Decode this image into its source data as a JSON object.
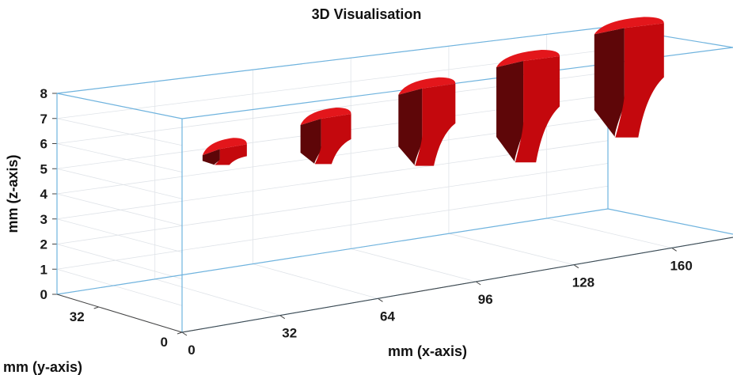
{
  "chart_data": {
    "type": "3d-volume",
    "title": "3D Visualisation",
    "xlabel": "mm (x-axis)",
    "ylabel": "mm (y-axis)",
    "zlabel": "mm (z-axis)",
    "x_ticks": [
      "0",
      "32",
      "64",
      "96",
      "128",
      "160"
    ],
    "y_ticks": [
      "0",
      "32"
    ],
    "z_ticks": [
      "0",
      "1",
      "2",
      "3",
      "4",
      "5",
      "6",
      "7",
      "8"
    ],
    "xlim": [
      0,
      180
    ],
    "ylim": [
      0,
      48
    ],
    "zlim": [
      0,
      8
    ],
    "grid": true,
    "surface_color": "#c4080d",
    "box_color": "#6fb3de",
    "objects": [
      {
        "x": 16,
        "z_min": 5.3,
        "z_max": 5.9
      },
      {
        "x": 48,
        "z_min": 4.7,
        "z_max": 6.4
      },
      {
        "x": 80,
        "z_min": 4.0,
        "z_max": 6.9
      },
      {
        "x": 112,
        "z_min": 3.5,
        "z_max": 7.3
      },
      {
        "x": 144,
        "z_min": 3.8,
        "z_max": 7.9
      }
    ]
  }
}
